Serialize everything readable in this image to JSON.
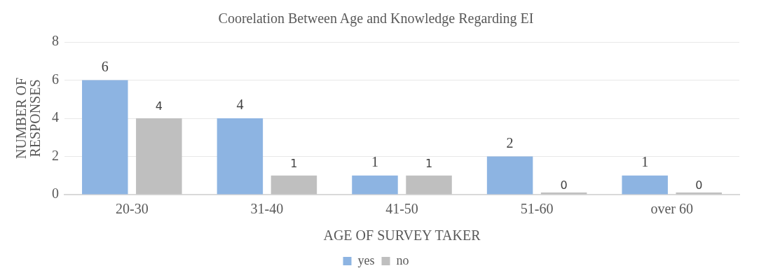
{
  "chart_data": {
    "type": "bar",
    "title": "Coorelation Between Age and Knowledge Regarding EI",
    "xlabel": "AGE OF SURVEY TAKER",
    "ylabel": "NUMBER OF RESPONSES",
    "categories": [
      "20-30",
      "31-40",
      "41-50",
      "51-60",
      "over 60"
    ],
    "series": [
      {
        "name": "yes",
        "color": "#8db4e2",
        "values": [
          6,
          4,
          1,
          2,
          1
        ]
      },
      {
        "name": "no",
        "color": "#bfbfbf",
        "values": [
          4,
          1,
          1,
          0,
          0
        ]
      }
    ],
    "ylim": [
      0,
      8
    ],
    "yticks": [
      0,
      2,
      4,
      6,
      8
    ],
    "grid": "y",
    "legend": "bottom",
    "data_labels": true
  }
}
